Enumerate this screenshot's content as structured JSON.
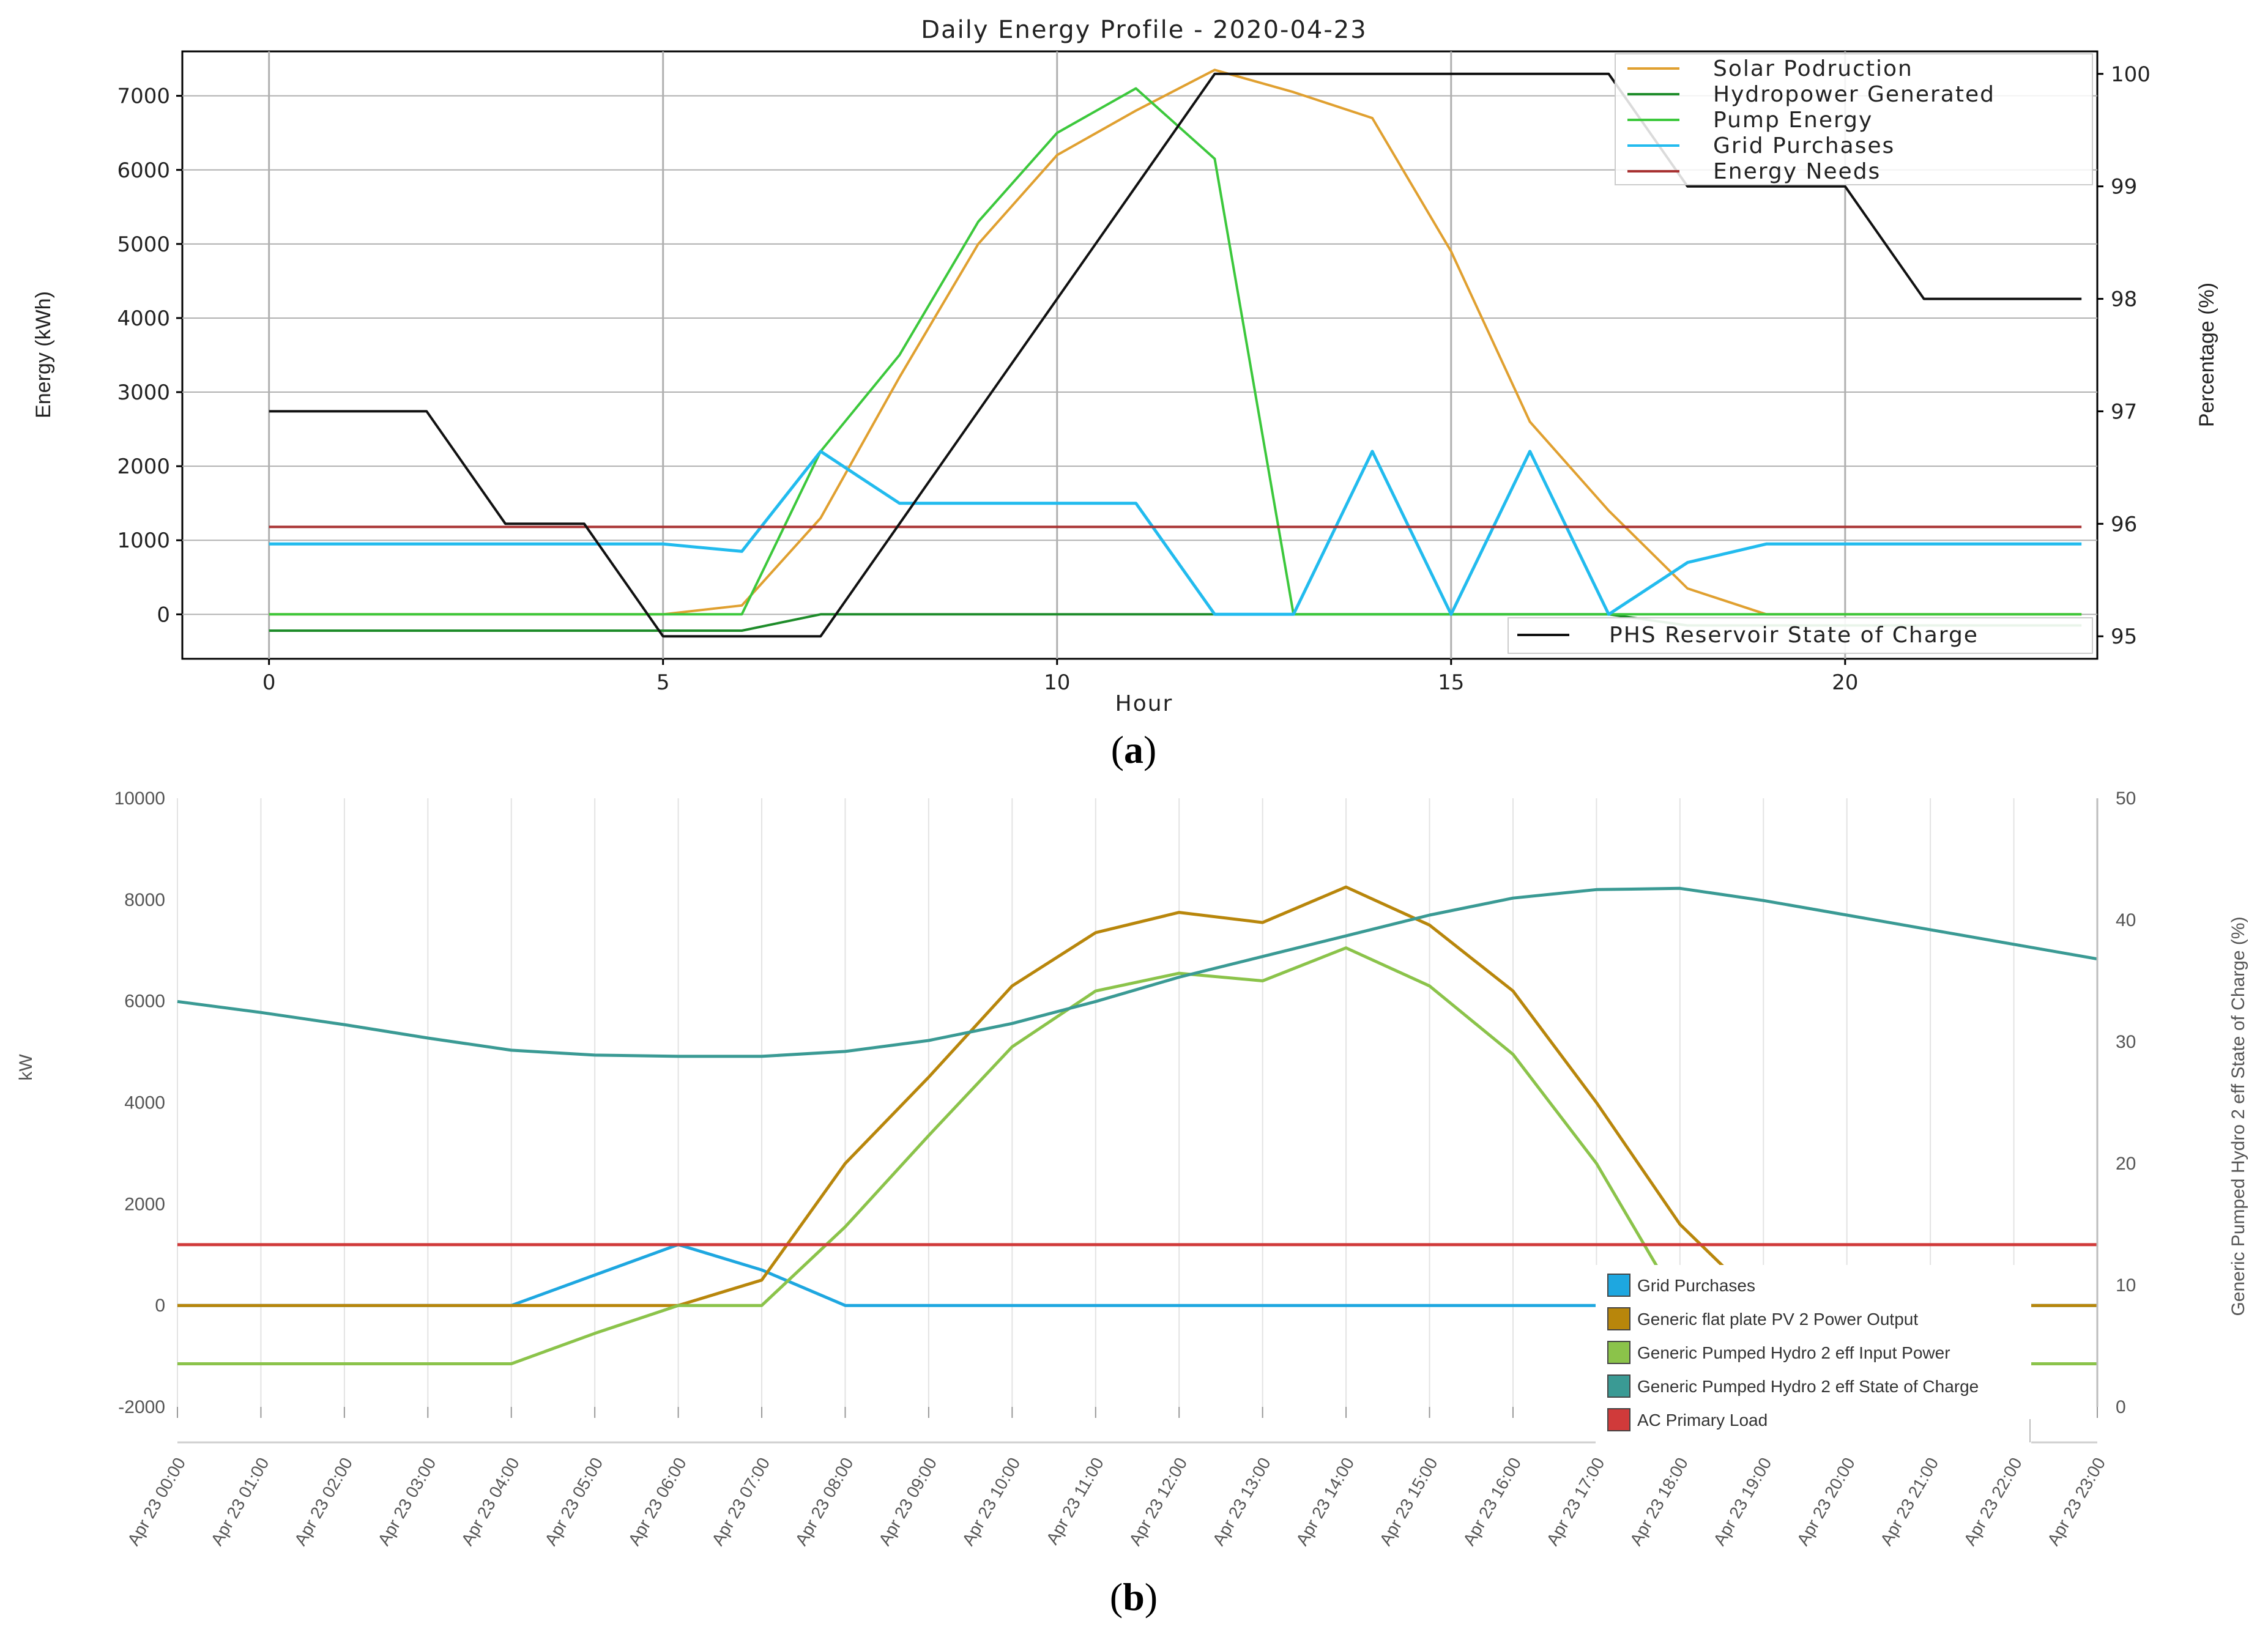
{
  "chart_data": [
    {
      "id": "a",
      "panel_label": "a",
      "type": "line",
      "title": "Daily Energy Profile - 2020-04-23",
      "xlabel": "Hour",
      "ylabel": "Energy (kWh)",
      "y2label": "Percentage (%)",
      "xlim": [
        -1.1,
        23.2
      ],
      "ylim": [
        -600,
        7600
      ],
      "y2lim": [
        94.8,
        100.2
      ],
      "xticks": [
        0,
        5,
        10,
        15,
        20
      ],
      "xtick_labels": [
        "0",
        "5",
        "10",
        "15",
        "20"
      ],
      "yticks": [
        0,
        1000,
        2000,
        3000,
        4000,
        5000,
        6000,
        7000
      ],
      "ytick_labels": [
        "0",
        "1000",
        "2000",
        "3000",
        "4000",
        "5000",
        "6000",
        "7000"
      ],
      "y2ticks": [
        95,
        96,
        97,
        98,
        99,
        100
      ],
      "y2tick_labels": [
        "95",
        "96",
        "97",
        "98",
        "99",
        "100"
      ],
      "grid": true,
      "legend_placement": "top-right",
      "legend2_placement": "bottom-right",
      "x": [
        0,
        1,
        2,
        3,
        4,
        5,
        6,
        7,
        8,
        9,
        10,
        11,
        12,
        13,
        14,
        15,
        16,
        17,
        18,
        19,
        20,
        21,
        22,
        23
      ],
      "series": [
        {
          "name": "Solar Podruction",
          "axis": "left",
          "color": "#e0a030",
          "values": [
            0,
            0,
            0,
            0,
            0,
            0,
            120,
            1300,
            3200,
            5000,
            6200,
            6800,
            7350,
            7050,
            6700,
            4900,
            2600,
            1400,
            350,
            0,
            0,
            0,
            0,
            0
          ]
        },
        {
          "name": "Hydropower Generated",
          "axis": "left",
          "color": "#1e8c2a",
          "values": [
            -220,
            -220,
            -220,
            -220,
            -220,
            -220,
            -220,
            0,
            0,
            0,
            0,
            0,
            0,
            0,
            0,
            0,
            0,
            0,
            -150,
            -150,
            -150,
            -150,
            -150,
            -150
          ]
        },
        {
          "name": "Pump Energy",
          "axis": "left",
          "color": "#3cc83c",
          "values": [
            0,
            0,
            0,
            0,
            0,
            0,
            0,
            2200,
            3500,
            5300,
            6500,
            7100,
            6150,
            0,
            0,
            0,
            0,
            0,
            0,
            0,
            0,
            0,
            0,
            0
          ]
        },
        {
          "name": "Grid Purchases",
          "axis": "left",
          "color": "#22bbee",
          "values": [
            950,
            950,
            950,
            950,
            950,
            950,
            850,
            2200,
            1500,
            1500,
            1500,
            1500,
            0,
            0,
            2200,
            0,
            2200,
            0,
            700,
            950,
            950,
            950,
            950,
            950
          ]
        },
        {
          "name": "Energy Needs",
          "axis": "left",
          "color": "#a83232",
          "values": [
            1180,
            1180,
            1180,
            1180,
            1180,
            1180,
            1180,
            1180,
            1180,
            1180,
            1180,
            1180,
            1180,
            1180,
            1180,
            1180,
            1180,
            1180,
            1180,
            1180,
            1180,
            1180,
            1180,
            1180
          ]
        },
        {
          "name": "PHS Reservoir State of Charge",
          "axis": "right",
          "color": "#111111",
          "values": [
            97,
            97,
            97,
            96,
            96,
            95,
            95,
            95,
            96,
            97,
            98,
            99,
            100,
            100,
            100,
            100,
            100,
            100,
            99,
            99,
            99,
            98,
            98,
            98
          ]
        }
      ]
    },
    {
      "id": "b",
      "panel_label": "b",
      "type": "line",
      "title": "",
      "xlabel": "",
      "ylabel": "kW",
      "y2label": "Generic Pumped Hydro 2 eff State of Charge (%)",
      "ylim": [
        -2000,
        10000
      ],
      "y2lim": [
        0,
        50
      ],
      "yticks": [
        -2000,
        0,
        2000,
        4000,
        6000,
        8000,
        10000
      ],
      "ytick_labels": [
        "-2000",
        "0",
        "2000",
        "4000",
        "6000",
        "8000",
        "10000"
      ],
      "y2ticks": [
        0,
        10,
        20,
        30,
        40,
        50
      ],
      "y2tick_labels": [
        "0",
        "10",
        "20",
        "30",
        "40",
        "50"
      ],
      "grid": true,
      "legend_placement": "bottom-right",
      "categories": [
        "Apr 23 00:00",
        "Apr 23 01:00",
        "Apr 23 02:00",
        "Apr 23 03:00",
        "Apr 23 04:00",
        "Apr 23 05:00",
        "Apr 23 06:00",
        "Apr 23 07:00",
        "Apr 23 08:00",
        "Apr 23 09:00",
        "Apr 23 10:00",
        "Apr 23 11:00",
        "Apr 23 12:00",
        "Apr 23 13:00",
        "Apr 23 14:00",
        "Apr 23 15:00",
        "Apr 23 16:00",
        "Apr 23 17:00",
        "Apr 23 18:00",
        "Apr 23 19:00",
        "Apr 23 20:00",
        "Apr 23 21:00",
        "Apr 23 22:00",
        "Apr 23 23:00"
      ],
      "series": [
        {
          "name": "Grid Purchases",
          "axis": "left",
          "color": "#1ea7e0",
          "values": [
            0,
            0,
            0,
            0,
            0,
            600,
            1200,
            700,
            0,
            0,
            0,
            0,
            0,
            0,
            0,
            0,
            0,
            0,
            0,
            0,
            0,
            0,
            0,
            0
          ]
        },
        {
          "name": "Generic flat plate PV 2 Power Output",
          "axis": "left",
          "color": "#b8860b",
          "values": [
            0,
            0,
            0,
            0,
            0,
            0,
            0,
            500,
            2800,
            4500,
            6300,
            7350,
            7750,
            7550,
            8250,
            7500,
            6200,
            4000,
            1600,
            0,
            0,
            0,
            0,
            0
          ]
        },
        {
          "name": "Generic Pumped Hydro 2 eff Input Power",
          "axis": "left",
          "color": "#8bc34a",
          "values": [
            -1150,
            -1150,
            -1150,
            -1150,
            -1150,
            -550,
            0,
            0,
            1550,
            3350,
            5100,
            6200,
            6550,
            6400,
            7050,
            6300,
            4950,
            2800,
            0,
            -1150,
            -1150,
            -1150,
            -1150,
            -1150
          ]
        },
        {
          "name": "Generic Pumped Hydro 2 eff State of Charge",
          "axis": "right",
          "color": "#3a9a94",
          "values": [
            33.3,
            32.4,
            31.4,
            30.3,
            29.3,
            28.9,
            28.8,
            28.8,
            29.2,
            30.1,
            31.5,
            33.3,
            35.3,
            37.0,
            38.7,
            40.4,
            41.8,
            42.5,
            42.6,
            41.6,
            40.4,
            39.2,
            38.0,
            36.8
          ]
        },
        {
          "name": "AC Primary Load",
          "axis": "left",
          "color": "#d03a3a",
          "values": [
            1200,
            1200,
            1200,
            1200,
            1200,
            1200,
            1200,
            1200,
            1200,
            1200,
            1200,
            1200,
            1200,
            1200,
            1200,
            1200,
            1200,
            1200,
            1200,
            1200,
            1200,
            1200,
            1200,
            1200
          ]
        }
      ]
    }
  ]
}
